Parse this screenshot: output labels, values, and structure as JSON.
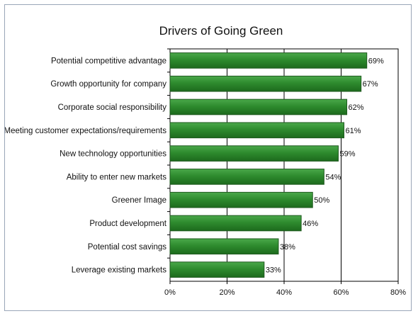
{
  "chart_data": {
    "type": "bar",
    "orientation": "horizontal",
    "title": "Drivers of Going Green",
    "categories": [
      "Potential competitive advantage",
      "Growth opportunity for company",
      "Corporate social responsibility",
      "Meeting customer expectations/requirements",
      "New technology opportunities",
      "Ability to enter new markets",
      "Greener Image",
      "Product development",
      "Potential cost savings",
      "Leverage existing markets"
    ],
    "values": [
      69,
      67,
      62,
      61,
      59,
      54,
      50,
      46,
      38,
      33
    ],
    "data_labels": [
      "69%",
      "67%",
      "62%",
      "61%",
      "59%",
      "54%",
      "50%",
      "46%",
      "38%",
      "33%"
    ],
    "xlim": [
      0,
      80
    ],
    "x_ticks": [
      0,
      20,
      40,
      60,
      80
    ],
    "x_tick_labels": [
      "0%",
      "20%",
      "40%",
      "60%",
      "80%"
    ],
    "grid": "vertical",
    "legend": "none",
    "bar_color": "#2e8b2e",
    "bar_edge_color": "#1f5a1f"
  }
}
